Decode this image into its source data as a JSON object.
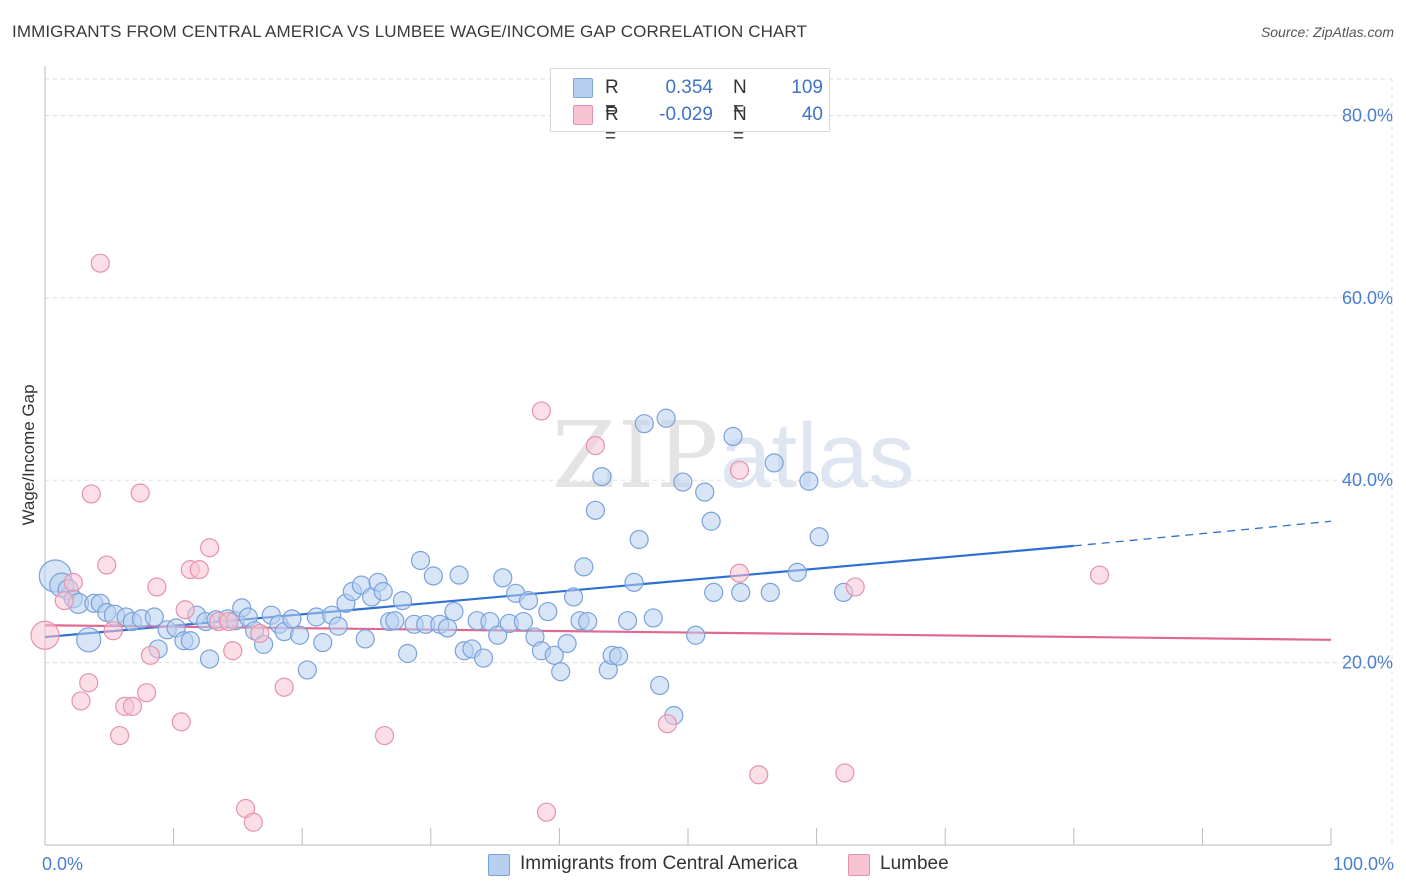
{
  "header": {
    "title": "IMMIGRANTS FROM CENTRAL AMERICA VS LUMBEE WAGE/INCOME GAP CORRELATION CHART",
    "source": "Source: ZipAtlas.com"
  },
  "watermark": {
    "part1": "ZIP",
    "part2": "atlas"
  },
  "legend": {
    "rows": [
      {
        "r_label": "R =",
        "r_value": "0.354",
        "n_label": "N =",
        "n_value": "109",
        "fill": "#b8d0f0",
        "stroke": "#7aa2db"
      },
      {
        "r_label": "R =",
        "r_value": "-0.029",
        "n_label": "N =",
        "n_value": "40",
        "fill": "#f7c3d2",
        "stroke": "#e593ad"
      }
    ]
  },
  "bottom_legend": {
    "items": [
      {
        "label": "Immigrants from Central America",
        "fill": "#b8d0f0",
        "stroke": "#7aa2db"
      },
      {
        "label": "Lumbee",
        "fill": "#f7c3d2",
        "stroke": "#e593ad"
      }
    ]
  },
  "chart_data": {
    "type": "scatter",
    "title": "IMMIGRANTS FROM CENTRAL AMERICA VS LUMBEE WAGE/INCOME GAP CORRELATION CHART",
    "xlabel": "",
    "ylabel": "Wage/Income Gap",
    "xlim": [
      0,
      100
    ],
    "ylim": [
      0,
      84
    ],
    "x_tick_labels": [
      {
        "value": 0,
        "label": "0.0%"
      },
      {
        "value": 100,
        "label": "100.0%"
      }
    ],
    "y_tick_labels": [
      {
        "value": 20,
        "label": "20.0%"
      },
      {
        "value": 40,
        "label": "40.0%"
      },
      {
        "value": 60,
        "label": "60.0%"
      },
      {
        "value": 80,
        "label": "80.0%"
      }
    ],
    "x_minor_ticks": [
      10,
      20,
      30,
      40,
      50,
      60,
      70,
      80,
      90
    ],
    "colors": {
      "blue_fill": "#b8d0f0",
      "blue_stroke": "#7aa2db",
      "blue_line": "#2f6fd0",
      "pink_fill": "#f7c3d2",
      "pink_stroke": "#e593ad",
      "pink_line": "#e06890",
      "grid": "#dddddd",
      "tick_label": "#4a7fd0"
    },
    "series": [
      {
        "name": "Immigrants from Central America",
        "r": 0.354,
        "n": 109,
        "trend": {
          "x0": 0,
          "y0": 22.8,
          "x1": 80,
          "y1": 32.8,
          "dash_x1": 100,
          "dash_y1": 35.5
        },
        "points": [
          [
            0.8,
            29.5,
            16
          ],
          [
            1.3,
            28.5,
            12
          ],
          [
            1.8,
            28,
            10
          ],
          [
            2.2,
            27,
            9
          ],
          [
            2.6,
            26.5,
            10
          ],
          [
            3.4,
            22.5,
            12
          ],
          [
            3.8,
            26.5,
            9
          ],
          [
            4.3,
            26.5,
            9
          ],
          [
            4.8,
            25.5,
            9
          ],
          [
            5.4,
            25.2,
            10
          ],
          [
            6.3,
            25,
            9
          ],
          [
            6.8,
            24.5,
            9
          ],
          [
            7.5,
            24.8,
            9
          ],
          [
            8.5,
            25,
            9
          ],
          [
            8.8,
            21.5,
            9
          ],
          [
            9.5,
            23.6,
            9
          ],
          [
            10.2,
            23.8,
            9
          ],
          [
            10.8,
            22.4,
            9
          ],
          [
            11.3,
            22.4,
            9
          ],
          [
            11.8,
            25.2,
            9
          ],
          [
            12.5,
            24.5,
            9
          ],
          [
            12.8,
            20.4,
            9
          ],
          [
            13.3,
            24.7,
            9
          ],
          [
            14.2,
            24.8,
            9
          ],
          [
            14.8,
            24.6,
            9
          ],
          [
            15.3,
            26,
            9
          ],
          [
            15.8,
            25,
            9
          ],
          [
            16.3,
            23.5,
            9
          ],
          [
            17,
            22,
            9
          ],
          [
            17.6,
            25.2,
            9
          ],
          [
            18.2,
            24.2,
            9
          ],
          [
            18.6,
            23.4,
            9
          ],
          [
            19.2,
            24.8,
            9
          ],
          [
            19.8,
            23,
            9
          ],
          [
            20.4,
            19.2,
            9
          ],
          [
            21.1,
            25,
            9
          ],
          [
            21.6,
            22.2,
            9
          ],
          [
            22.3,
            25.2,
            9
          ],
          [
            22.8,
            24,
            9
          ],
          [
            23.4,
            26.5,
            9
          ],
          [
            23.9,
            27.8,
            9
          ],
          [
            24.6,
            28.5,
            9
          ],
          [
            24.9,
            22.6,
            9
          ],
          [
            25.4,
            27.2,
            9
          ],
          [
            25.9,
            28.8,
            9
          ],
          [
            26.3,
            27.8,
            9
          ],
          [
            26.8,
            24.5,
            9
          ],
          [
            27.2,
            24.6,
            9
          ],
          [
            27.8,
            26.8,
            9
          ],
          [
            28.2,
            21,
            9
          ],
          [
            28.7,
            24.2,
            9
          ],
          [
            29.2,
            31.2,
            9
          ],
          [
            29.6,
            24.2,
            9
          ],
          [
            30.2,
            29.5,
            9
          ],
          [
            30.7,
            24.2,
            9
          ],
          [
            31.3,
            23.8,
            9
          ],
          [
            31.8,
            25.6,
            9
          ],
          [
            32.2,
            29.6,
            9
          ],
          [
            32.6,
            21.3,
            9
          ],
          [
            33.2,
            21.5,
            9
          ],
          [
            33.6,
            24.6,
            9
          ],
          [
            34.1,
            20.5,
            9
          ],
          [
            34.6,
            24.5,
            9
          ],
          [
            35.2,
            23,
            9
          ],
          [
            35.6,
            29.3,
            9
          ],
          [
            36.1,
            24.3,
            9
          ],
          [
            36.6,
            27.6,
            9
          ],
          [
            37.2,
            24.5,
            9
          ],
          [
            37.6,
            26.8,
            9
          ],
          [
            38.1,
            22.8,
            9
          ],
          [
            38.6,
            21.3,
            9
          ],
          [
            39.1,
            25.6,
            9
          ],
          [
            39.6,
            20.8,
            9
          ],
          [
            40.1,
            19,
            9
          ],
          [
            40.6,
            22.1,
            9
          ],
          [
            41.1,
            27.2,
            9
          ],
          [
            41.6,
            24.6,
            9
          ],
          [
            41.9,
            30.5,
            9
          ],
          [
            42.2,
            24.5,
            9
          ],
          [
            42.8,
            36.7,
            9
          ],
          [
            43.3,
            40.4,
            9
          ],
          [
            43.8,
            19.2,
            9
          ],
          [
            44.1,
            20.8,
            9
          ],
          [
            44.6,
            20.7,
            9
          ],
          [
            45.3,
            24.6,
            9
          ],
          [
            45.8,
            28.8,
            9
          ],
          [
            46.2,
            33.5,
            9
          ],
          [
            46.6,
            46.2,
            9
          ],
          [
            47.3,
            24.9,
            9
          ],
          [
            47.8,
            17.5,
            9
          ],
          [
            48.3,
            46.8,
            9
          ],
          [
            48.9,
            14.2,
            9
          ],
          [
            49.6,
            39.8,
            9
          ],
          [
            50.6,
            23,
            9
          ],
          [
            51.3,
            38.7,
            9
          ],
          [
            51.8,
            35.5,
            9
          ],
          [
            52,
            27.7,
            9
          ],
          [
            53.5,
            44.8,
            9
          ],
          [
            54.1,
            27.7,
            9
          ],
          [
            56.4,
            27.7,
            9
          ],
          [
            56.7,
            41.9,
            9
          ],
          [
            58.5,
            29.9,
            9
          ],
          [
            59.4,
            39.9,
            9
          ],
          [
            60.2,
            33.8,
            9
          ],
          [
            62.1,
            27.7,
            9
          ]
        ]
      },
      {
        "name": "Lumbee",
        "r": -0.029,
        "n": 40,
        "trend": {
          "x0": 0,
          "y0": 24.1,
          "x1": 100,
          "y1": 22.5
        },
        "points": [
          [
            0,
            23,
            14
          ],
          [
            1.5,
            26.8,
            9
          ],
          [
            2.2,
            28.8,
            9
          ],
          [
            2.8,
            15.8,
            9
          ],
          [
            3.4,
            17.8,
            9
          ],
          [
            3.6,
            38.5,
            9
          ],
          [
            4.3,
            63.8,
            9
          ],
          [
            4.8,
            30.7,
            9
          ],
          [
            5.3,
            23.5,
            9
          ],
          [
            5.8,
            12,
            9
          ],
          [
            6.2,
            15.2,
            9
          ],
          [
            6.8,
            15.2,
            9
          ],
          [
            7.4,
            38.6,
            9
          ],
          [
            7.9,
            16.7,
            9
          ],
          [
            8.2,
            20.8,
            9
          ],
          [
            8.7,
            28.3,
            9
          ],
          [
            10.6,
            13.5,
            9
          ],
          [
            10.9,
            25.8,
            9
          ],
          [
            11.3,
            30.2,
            9
          ],
          [
            12,
            30.2,
            9
          ],
          [
            12.8,
            32.6,
            9
          ],
          [
            13.5,
            24.5,
            9
          ],
          [
            14.3,
            24.5,
            9
          ],
          [
            14.6,
            21.3,
            9
          ],
          [
            15.6,
            4,
            9
          ],
          [
            16.2,
            2.5,
            9
          ],
          [
            16.7,
            23.2,
            9
          ],
          [
            18.6,
            17.3,
            9
          ],
          [
            26.4,
            12,
            9
          ],
          [
            38.6,
            47.6,
            9
          ],
          [
            39,
            3.6,
            9
          ],
          [
            42.8,
            43.8,
            9
          ],
          [
            48.4,
            13.3,
            9
          ],
          [
            54,
            41.1,
            9
          ],
          [
            54,
            29.8,
            9
          ],
          [
            55.5,
            7.7,
            9
          ],
          [
            62.2,
            7.9,
            9
          ],
          [
            63,
            28.3,
            9
          ],
          [
            82,
            29.6,
            9
          ]
        ]
      }
    ]
  }
}
